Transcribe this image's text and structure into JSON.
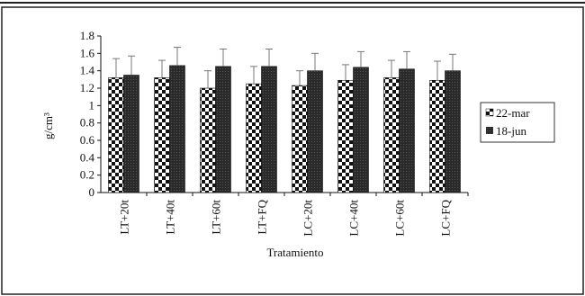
{
  "chart_data": {
    "type": "bar",
    "ylabel": "g/cm³",
    "xlabel": "Tratamiento",
    "ylim": [
      0,
      1.8
    ],
    "ystep": 0.2,
    "yticks": [
      "0",
      "0.2",
      "0.4",
      "0.6",
      "0.8",
      "1",
      "1.2",
      "1.4",
      "1.6",
      "1.8"
    ],
    "categories": [
      "LT+20t",
      "LT+40t",
      "LT+60t",
      "LT+FQ",
      "LC+20t",
      "LC+40t",
      "LC+60t",
      "LC+FQ"
    ],
    "series": [
      {
        "name": "22-mar",
        "pattern": "checker",
        "values": [
          1.32,
          1.32,
          1.2,
          1.25,
          1.23,
          1.29,
          1.32,
          1.29
        ],
        "errors": [
          0.22,
          0.2,
          0.2,
          0.2,
          0.17,
          0.18,
          0.2,
          0.22
        ]
      },
      {
        "name": "18-jun",
        "pattern": "dark",
        "values": [
          1.35,
          1.46,
          1.45,
          1.45,
          1.4,
          1.44,
          1.42,
          1.4
        ],
        "errors": [
          0.22,
          0.21,
          0.2,
          0.2,
          0.2,
          0.18,
          0.2,
          0.19
        ]
      }
    ],
    "grid": false,
    "legend_position": "right"
  }
}
